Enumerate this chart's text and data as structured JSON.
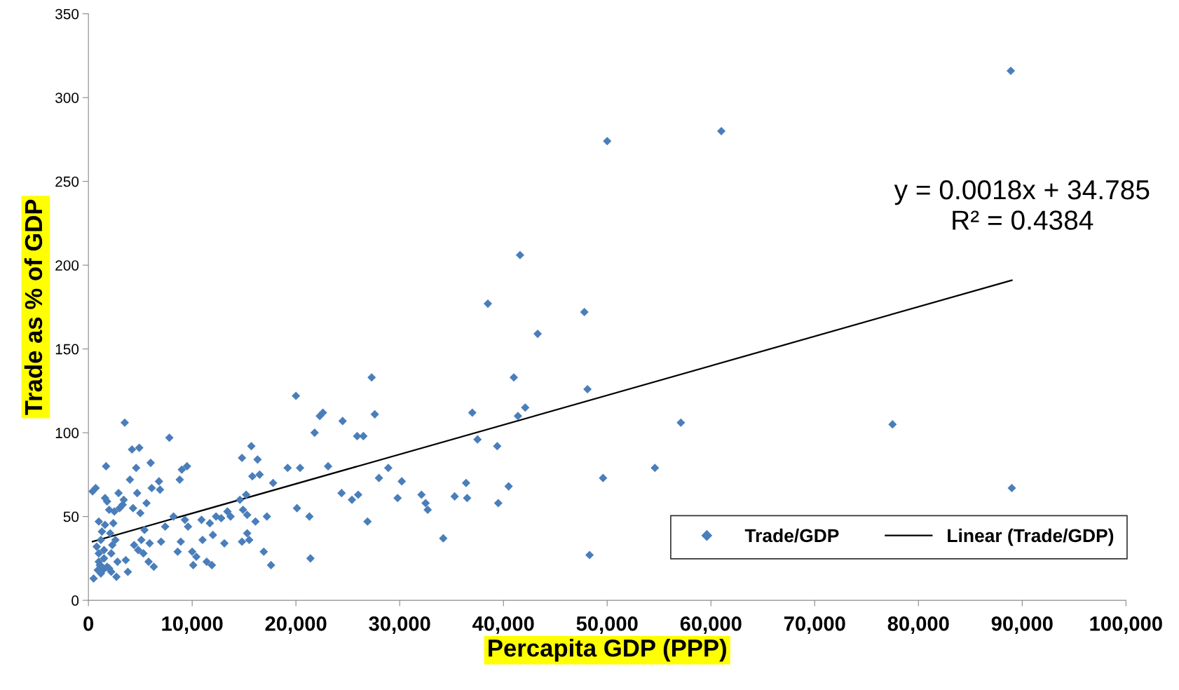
{
  "chart_data": {
    "type": "scatter",
    "xlabel": "Percapita GDP (PPP)",
    "ylabel": "Trade as % of GDP",
    "xlim": [
      0,
      100000
    ],
    "xticks": [
      {
        "value": 0,
        "label": "0"
      },
      {
        "value": 10000,
        "label": "10,000"
      },
      {
        "value": 20000,
        "label": "20,000"
      },
      {
        "value": 30000,
        "label": "30,000"
      },
      {
        "value": 40000,
        "label": "40,000"
      },
      {
        "value": 50000,
        "label": "50,000"
      },
      {
        "value": 60000,
        "label": "60,000"
      },
      {
        "value": 70000,
        "label": "70,000"
      },
      {
        "value": 80000,
        "label": "80,000"
      },
      {
        "value": 90000,
        "label": "90,000"
      },
      {
        "value": 100000,
        "label": "100,000"
      }
    ],
    "ylim": [
      0,
      350
    ],
    "yticks": [
      0,
      50,
      100,
      150,
      200,
      250,
      300,
      350
    ],
    "grid": false,
    "legend": "bottom right",
    "annotations": [
      "y = 0.0018x + 34.785\nR² = 0.4384"
    ],
    "series": [
      {
        "name": "Trade/GDP",
        "marker": "diamond",
        "color": "#4a7ebb",
        "x": [
          400,
          700,
          500,
          800,
          1000,
          1000,
          1100,
          1200,
          1300,
          1400,
          1500,
          1600,
          1600,
          1800,
          1700,
          2000,
          1200,
          1500,
          2100,
          2200,
          2300,
          2400,
          2500,
          2600,
          2700,
          2800,
          2900,
          2200,
          1800,
          1000,
          900,
          1300,
          2000,
          3000,
          3300,
          3400,
          3500,
          3600,
          3800,
          4000,
          4200,
          4300,
          4400,
          4600,
          4700,
          4900,
          4800,
          5000,
          5100,
          5300,
          5400,
          5600,
          5800,
          5900,
          6000,
          6100,
          6300,
          6800,
          6900,
          7000,
          7400,
          7800,
          8200,
          8600,
          8800,
          8900,
          9000,
          9300,
          9500,
          9600,
          10000,
          10100,
          10400,
          10900,
          11000,
          11400,
          11700,
          11900,
          12000,
          12300,
          12800,
          13100,
          13400,
          13700,
          14600,
          14800,
          14900,
          14800,
          15200,
          15300,
          15300,
          15500,
          15700,
          15800,
          16100,
          16300,
          16500,
          16900,
          17200,
          17600,
          17800,
          19200,
          20000,
          20100,
          20400,
          21300,
          21400,
          21800,
          22300,
          22600,
          23100,
          24400,
          24500,
          25400,
          25900,
          26000,
          26500,
          26900,
          27300,
          27600,
          28000,
          28900,
          29800,
          30200,
          32100,
          32500,
          32700,
          34200,
          35300,
          36400,
          36500,
          37000,
          37500,
          38500,
          39400,
          39500,
          40500,
          41000,
          41400,
          41600,
          42100,
          43300,
          47800,
          48100,
          48300,
          49600,
          50000,
          54600,
          57100,
          61000,
          77500,
          88900,
          89000
        ],
        "values": [
          65,
          67,
          13,
          32,
          47,
          28,
          21,
          36,
          41,
          18,
          25,
          45,
          61,
          59,
          80,
          54,
          16,
          30,
          40,
          28,
          33,
          46,
          53,
          36,
          14,
          23,
          64,
          17,
          20,
          23,
          18,
          20,
          19,
          55,
          57,
          60,
          106,
          24,
          17,
          72,
          90,
          55,
          33,
          79,
          64,
          91,
          30,
          52,
          36,
          28,
          42,
          58,
          23,
          34,
          82,
          67,
          20,
          71,
          66,
          35,
          44,
          97,
          50,
          29,
          72,
          35,
          78,
          48,
          80,
          44,
          29,
          21,
          26,
          48,
          36,
          23,
          46,
          21,
          39,
          50,
          49,
          34,
          53,
          50,
          60,
          85,
          54,
          35,
          63,
          40,
          51,
          36,
          92,
          74,
          47,
          84,
          75,
          29,
          50,
          21,
          70,
          79,
          122,
          55,
          79,
          50,
          25,
          100,
          110,
          112,
          80,
          64,
          107,
          60,
          98,
          63,
          98,
          47,
          133,
          111,
          73,
          79,
          61,
          71,
          63,
          58,
          54,
          37,
          62,
          70,
          61,
          112,
          96,
          177,
          92,
          58,
          68,
          133,
          110,
          206,
          115,
          159,
          172,
          126,
          27,
          73,
          274,
          79,
          106,
          280,
          105,
          316,
          67
        ]
      },
      {
        "name": "Linear (Trade/GDP)",
        "type": "line",
        "marker": "none",
        "color": "#000000",
        "line_style": "solid",
        "x": [
          400,
          89000
        ],
        "values": [
          35,
          191
        ]
      }
    ]
  }
}
